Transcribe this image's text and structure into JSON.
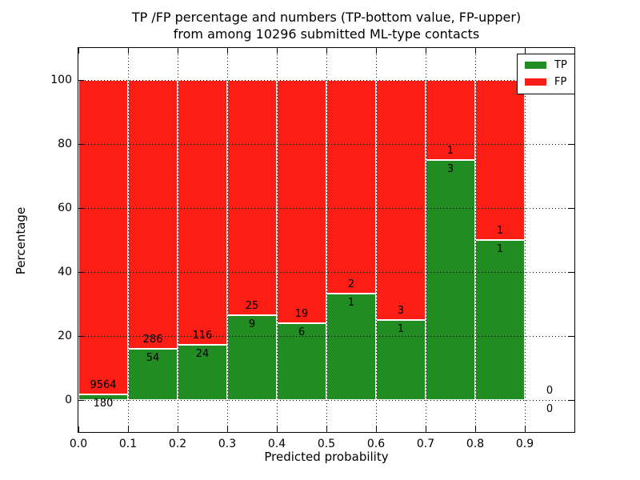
{
  "figure": {
    "title_line1": "TP /FP percentage and numbers (TP-bottom value, FP-upper)",
    "title_line2": "from among 10296 submitted ML-type contacts"
  },
  "colors": {
    "tp_green": "#218c22",
    "fp_red": "#fc1e14",
    "background": "#ffffff",
    "frame": "#000000",
    "grid": "#000000"
  },
  "chart_data": {
    "type": "bar",
    "stacked": true,
    "title": "TP /FP percentage and numbers (TP-bottom value, FP-upper) from among 10296 submitted ML-type contacts",
    "xlabel": "Predicted probability",
    "ylabel": "Percentage",
    "total_contacts": 10296,
    "xlim": [
      0.0,
      1.0
    ],
    "ylim": [
      -10,
      110
    ],
    "xticks": [
      "0.0",
      "0.1",
      "0.2",
      "0.3",
      "0.4",
      "0.5",
      "0.6",
      "0.7",
      "0.8",
      "0.9"
    ],
    "yticks": [
      0,
      20,
      40,
      60,
      80,
      100
    ],
    "grid": true,
    "bin_edges": [
      0.0,
      0.1,
      0.2,
      0.3,
      0.4,
      0.5,
      0.6,
      0.7,
      0.8,
      0.9,
      1.0
    ],
    "series": [
      {
        "name": "TP",
        "position": "bottom",
        "counts": [
          180,
          54,
          24,
          9,
          6,
          1,
          1,
          3,
          1,
          0
        ],
        "pct": [
          1.85,
          15.88,
          17.14,
          26.47,
          24.0,
          33.33,
          25.0,
          75.0,
          50.0,
          null
        ]
      },
      {
        "name": "FP",
        "position": "top",
        "counts": [
          9564,
          286,
          116,
          25,
          19,
          2,
          3,
          1,
          1,
          0
        ],
        "pct": [
          98.15,
          84.12,
          82.86,
          73.53,
          76.0,
          66.67,
          75.0,
          25.0,
          50.0,
          null
        ]
      }
    ],
    "legend": {
      "position": "upper right",
      "entries": [
        {
          "label": "TP",
          "color": "#218c22"
        },
        {
          "label": "FP",
          "color": "#fc1e14"
        }
      ]
    }
  }
}
